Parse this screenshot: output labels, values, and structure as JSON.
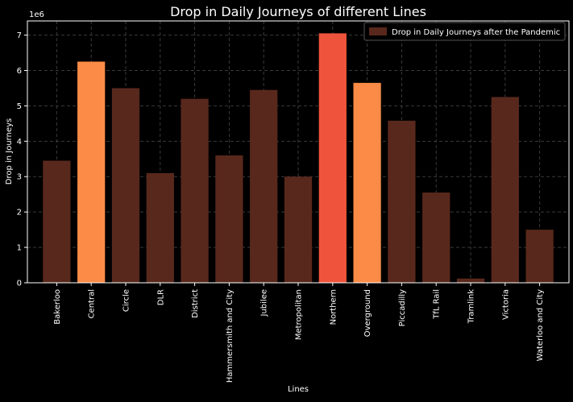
{
  "chart_data": {
    "type": "bar",
    "title": "Drop in Daily Journeys of different Lines",
    "xlabel": "Lines",
    "ylabel": "Drop in Journeys",
    "y_multiplier_label": "1e6",
    "ylim": [
      0,
      7.4
    ],
    "yticks": [
      "0",
      "1",
      "2",
      "3",
      "4",
      "5",
      "6",
      "7"
    ],
    "grid": true,
    "legend_position": "top-right",
    "series": [
      {
        "name": "Drop in Daily Journeys after the Pandemic",
        "color": "#59281c"
      }
    ],
    "categories": [
      "Bakerloo",
      "Central",
      "Circle",
      "DLR",
      "District",
      "Hammersmith and City",
      "Jubilee",
      "Metropolitan",
      "Northern",
      "Overground",
      "Piccadilly",
      "TfL Rail",
      "Tramlink",
      "Victoria",
      "Waterloo and City"
    ],
    "values": [
      3.45,
      6.25,
      5.5,
      3.1,
      5.2,
      3.6,
      5.45,
      3.0,
      7.05,
      5.65,
      4.58,
      2.55,
      0.12,
      5.25,
      1.5
    ],
    "bar_colors": [
      "#59281c",
      "#fb8b46",
      "#59281c",
      "#59281c",
      "#59281c",
      "#59281c",
      "#59281c",
      "#59281c",
      "#f0533b",
      "#fb8b46",
      "#59281c",
      "#59281c",
      "#59281c",
      "#59281c",
      "#59281c"
    ]
  },
  "colors": {
    "background": "#000000",
    "axis": "#ffffff",
    "grid": "#3a3a3a",
    "text": "#ffffff"
  }
}
